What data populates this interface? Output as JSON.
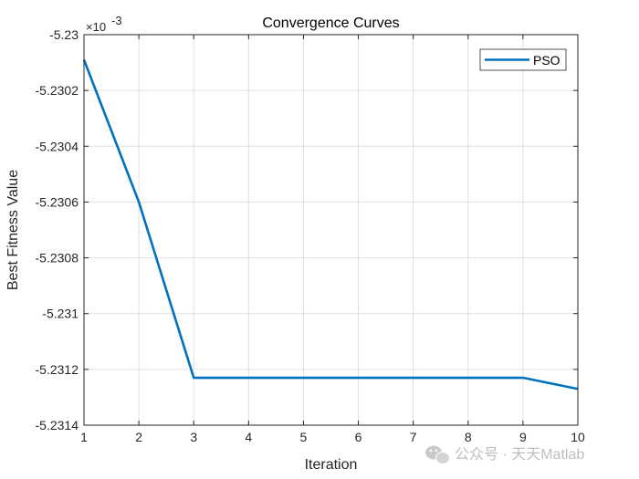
{
  "chart_data": {
    "type": "line",
    "title": "Convergence Curves",
    "xlabel": "Iteration",
    "ylabel": "Best Fitness Value",
    "xlim": [
      1,
      10
    ],
    "ylim": [
      -5.2314,
      -5.23
    ],
    "y_multiplier": "×10",
    "y_exponent": "-3",
    "xticks": [
      1,
      2,
      3,
      4,
      5,
      6,
      7,
      8,
      9,
      10
    ],
    "xtick_labels": [
      "1",
      "2",
      "3",
      "4",
      "5",
      "6",
      "7",
      "8",
      "9",
      "10"
    ],
    "yticks": [
      -5.23,
      -5.2302,
      -5.2304,
      -5.2306,
      -5.2308,
      -5.231,
      -5.2312,
      -5.2314
    ],
    "ytick_labels": [
      "-5.23",
      "-5.2302",
      "-5.2304",
      "-5.2306",
      "-5.2308",
      "-5.231",
      "-5.2312",
      "-5.2314"
    ],
    "grid": true,
    "legend_position": "top-right",
    "series": [
      {
        "name": "PSO",
        "color": "#0072BD",
        "x": [
          1,
          2,
          3,
          4,
          5,
          6,
          7,
          8,
          9,
          10
        ],
        "y": [
          -5.23009,
          -5.2306,
          -5.23123,
          -5.23123,
          -5.23123,
          -5.23123,
          -5.23123,
          -5.23123,
          -5.23123,
          -5.23127
        ]
      }
    ]
  },
  "watermark": {
    "icon": "wechat-icon",
    "text": "公众号 · 天天Matlab"
  }
}
